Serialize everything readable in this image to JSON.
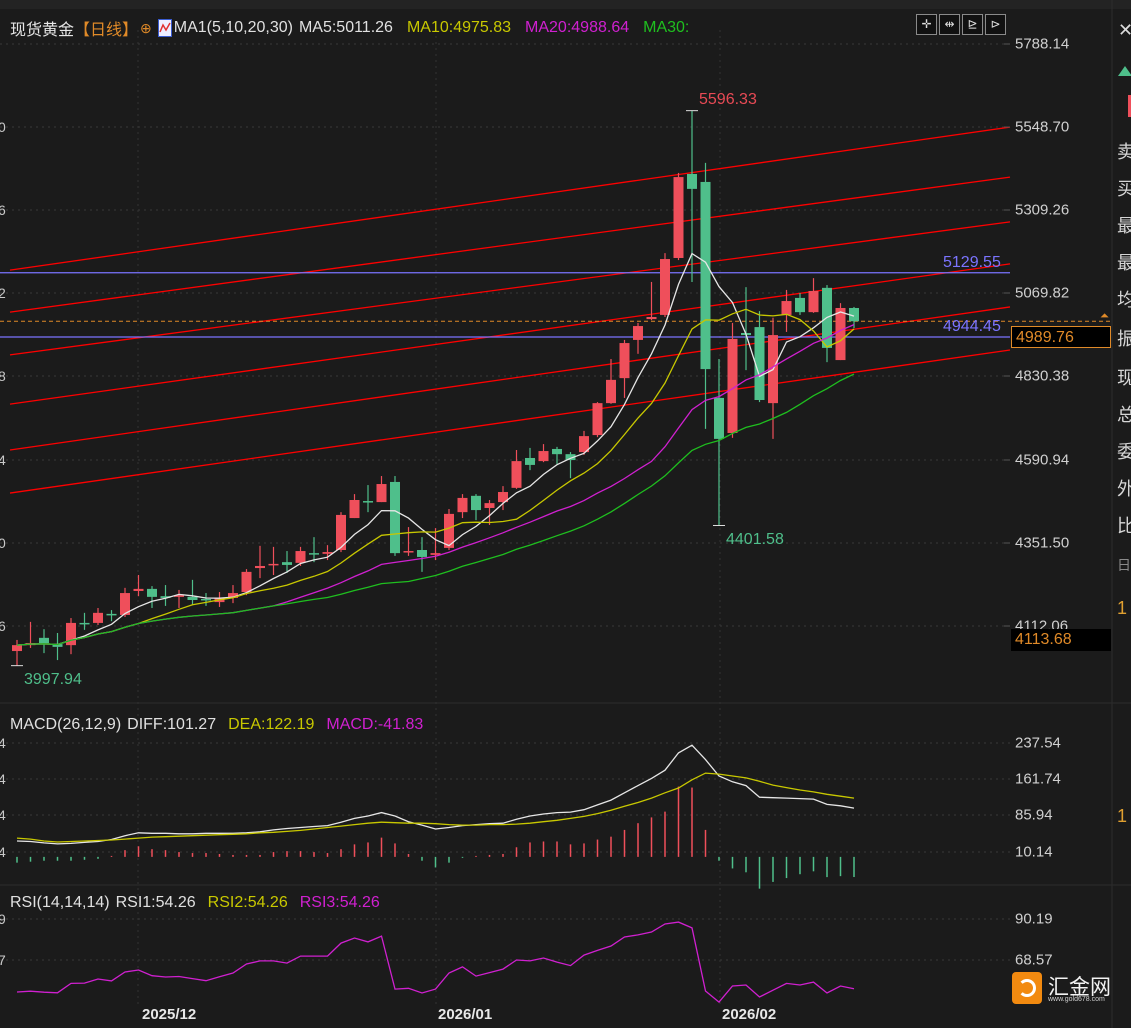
{
  "header": {
    "instrument": "现货黄金",
    "period": "【日线】",
    "ma_params": "MA1(5,10,20,30)",
    "ma5": "MA5:5011.26",
    "ma10": "MA10:4975.83",
    "ma20": "MA20:4988.64",
    "ma30": "MA30:",
    "toolbar_icons": [
      "crosshair-icon",
      "zoom-fit-icon",
      "step-back-icon",
      "step-forward-icon"
    ]
  },
  "price_axis": [
    "5788.14",
    "5548.70",
    "5309.26",
    "5069.82",
    "4830.38",
    "4590.94",
    "4351.50",
    "4112.06"
  ],
  "current_price_box": "4989.76",
  "lower_price_box": "4113.68",
  "annotations": {
    "high": "5596.33",
    "low_recent": "4401.58",
    "low_start": "3997.94",
    "hline_upper": "5129.55",
    "hline_lower": "4944.45"
  },
  "macd": {
    "legend_params": "MACD(26,12,9)",
    "diff_label": "DIFF:101.27",
    "dea_label": "DEA:122.19",
    "macd_label": "MACD:-41.83",
    "axis": [
      "237.54",
      "161.74",
      "85.94",
      "10.14"
    ]
  },
  "rsi": {
    "legend_params": "RSI(14,14,14)",
    "rsi1_label": "RSI1:54.26",
    "rsi2_label": "RSI2:54.26",
    "rsi3_label": "RSI3:54.26",
    "axis": [
      "90.19",
      "68.57"
    ]
  },
  "dates": [
    "2025/12",
    "2026/01",
    "2026/02"
  ],
  "left_edge_fragments": [
    "0",
    "6",
    "2",
    "8",
    "4",
    "0",
    "6",
    "4",
    "4",
    "4",
    "4",
    "9",
    "7"
  ],
  "right_panel_fragments": [
    "卖",
    "买",
    "最",
    "最",
    "均",
    "振",
    "现",
    "总",
    "委",
    "外",
    "比",
    "日",
    "1",
    "1"
  ],
  "watermark": {
    "name": "汇金网",
    "url": "www.gold678.com"
  },
  "colors": {
    "background": "#1b1b1b",
    "up": "#ef4f5b",
    "down": "#4fbf8b",
    "ma5": "#e6e6e6",
    "ma10": "#c8c800",
    "ma20": "#d020d0",
    "ma30": "#1fbf1f",
    "channel": "#ff0000",
    "hline": "#7b74ff",
    "current": "#e08a28"
  },
  "chart_data": {
    "type": "candlestick",
    "ylim": [
      3990,
      5800
    ],
    "grid": true,
    "ohlc": [
      [
        4040,
        4072,
        3997.94,
        4057
      ],
      [
        4057,
        4124,
        4049,
        4063
      ],
      [
        4078,
        4103,
        4034,
        4063
      ],
      [
        4060,
        4092,
        4014,
        4052
      ],
      [
        4057,
        4135,
        4031,
        4121
      ],
      [
        4121,
        4150,
        4101,
        4118
      ],
      [
        4121,
        4164,
        4115,
        4150
      ],
      [
        4147,
        4158,
        4126,
        4144
      ],
      [
        4144,
        4222,
        4138,
        4207
      ],
      [
        4213,
        4259,
        4198,
        4219
      ],
      [
        4219,
        4227,
        4164,
        4196
      ],
      [
        4198,
        4230,
        4170,
        4193
      ],
      [
        4196,
        4216,
        4164,
        4201
      ],
      [
        4196,
        4245,
        4173,
        4187
      ],
      [
        4190,
        4207,
        4170,
        4187
      ],
      [
        4181,
        4210,
        4167,
        4193
      ],
      [
        4193,
        4230,
        4178,
        4207
      ],
      [
        4210,
        4276,
        4201,
        4268
      ],
      [
        4279,
        4343,
        4250,
        4285
      ],
      [
        4288,
        4340,
        4259,
        4291
      ],
      [
        4296,
        4328,
        4265,
        4288
      ],
      [
        4294,
        4340,
        4285,
        4328
      ],
      [
        4322,
        4368,
        4296,
        4320
      ],
      [
        4320,
        4345,
        4302,
        4325
      ],
      [
        4331,
        4440,
        4325,
        4432
      ],
      [
        4423,
        4492,
        4423,
        4475
      ],
      [
        4472,
        4518,
        4440,
        4469
      ],
      [
        4469,
        4544,
        4469,
        4521
      ],
      [
        4527,
        4544,
        4314,
        4322
      ],
      [
        4325,
        4397,
        4314,
        4328
      ],
      [
        4331,
        4368,
        4268,
        4311
      ],
      [
        4317,
        4394,
        4302,
        4322
      ],
      [
        4337,
        4449,
        4331,
        4435
      ],
      [
        4440,
        4492,
        4423,
        4481
      ],
      [
        4487,
        4492,
        4417,
        4446
      ],
      [
        4452,
        4475,
        4403,
        4466
      ],
      [
        4469,
        4515,
        4446,
        4498
      ],
      [
        4510,
        4619,
        4507,
        4587
      ],
      [
        4596,
        4625,
        4561,
        4576
      ],
      [
        4587,
        4636,
        4584,
        4616
      ],
      [
        4622,
        4628,
        4579,
        4607
      ],
      [
        4607,
        4613,
        4538,
        4590
      ],
      [
        4613,
        4674,
        4605,
        4659
      ],
      [
        4662,
        4757,
        4656,
        4754
      ],
      [
        4754,
        4881,
        4752,
        4821
      ],
      [
        4826,
        4936,
        4769,
        4927
      ],
      [
        4936,
        4985,
        4896,
        4976
      ],
      [
        4996,
        5103,
        4993,
        5002
      ],
      [
        5008,
        5186,
        5002,
        5169
      ],
      [
        5172,
        5417,
        5166,
        5405
      ],
      [
        5414,
        5596.33,
        5103,
        5371
      ],
      [
        5391,
        5446,
        4680,
        4852
      ],
      [
        4769,
        4881,
        4401.58,
        4651
      ],
      [
        4668,
        4985,
        4654,
        4939
      ],
      [
        4956,
        5088,
        4849,
        4950
      ],
      [
        4973,
        5019,
        4757,
        4763
      ],
      [
        4754,
        5000,
        4651,
        4950
      ],
      [
        5008,
        5080,
        4959,
        5048
      ],
      [
        5057,
        5071,
        5008,
        5016
      ],
      [
        5016,
        5114,
        5014,
        5077
      ],
      [
        5086,
        5094,
        4872,
        4913
      ],
      [
        4878,
        5042,
        4878,
        5028
      ],
      [
        5028,
        5031,
        4970,
        4989.76
      ]
    ],
    "moving_averages": [
      5,
      10,
      20,
      30
    ],
    "horizontal_lines": [
      5129.55,
      4944.45
    ],
    "current_price": 4989.76,
    "channel_lines": [
      {
        "start": 5137,
        "end": 5549
      },
      {
        "start": 5016,
        "end": 5405
      },
      {
        "start": 4893,
        "end": 5276
      },
      {
        "start": 4751,
        "end": 5155
      },
      {
        "start": 4619,
        "end": 5031
      },
      {
        "start": 4495,
        "end": 4907
      }
    ],
    "macd": {
      "diff": [
        33,
        32,
        29,
        27,
        28,
        30,
        32,
        36,
        44,
        50,
        49,
        49,
        48,
        48,
        49,
        49,
        49,
        50,
        52,
        56,
        59,
        61,
        63,
        65,
        72,
        80,
        85,
        92,
        85,
        73,
        66,
        58,
        61,
        65,
        67,
        69,
        70,
        78,
        85,
        89,
        92,
        93,
        98,
        108,
        118,
        133,
        148,
        163,
        180,
        216,
        232,
        202,
        168,
        156,
        148,
        124,
        123,
        122,
        121,
        120,
        109,
        106,
        101.27
      ],
      "dea": [
        39,
        37,
        33,
        31,
        32,
        33,
        34,
        35,
        37,
        39,
        41,
        42,
        43,
        44,
        45,
        46,
        47,
        48,
        50,
        51,
        53,
        55,
        58,
        61,
        64,
        67,
        70,
        72,
        71,
        70,
        70,
        69,
        67,
        66,
        66,
        67,
        67,
        68,
        70,
        73,
        76,
        80,
        84,
        90,
        97,
        105,
        113,
        122,
        133,
        143,
        160,
        174,
        172,
        168,
        164,
        157,
        149,
        144,
        139,
        135,
        130,
        126,
        122.19
      ],
      "ylim": [
        -20,
        250
      ]
    },
    "rsi": {
      "values": [
        52.6,
        53,
        52.5,
        52.2,
        57,
        57.2,
        59.3,
        58.3,
        62.9,
        63.9,
        61,
        60.3,
        60.6,
        59.5,
        58.4,
        60.5,
        62.4,
        67,
        68.6,
        68.6,
        67.5,
        71.1,
        71.1,
        71.1,
        77.8,
        80.4,
        78.4,
        81.4,
        54.1,
        54.5,
        52.1,
        54.1,
        62.4,
        65.5,
        60.8,
        62.6,
        64.4,
        69.1,
        68.6,
        70.1,
        68,
        66.2,
        71.6,
        74,
        76.3,
        80.9,
        82,
        83.5,
        87.6,
        88.6,
        85.6,
        53.1,
        47.4,
        55.7,
        56.2,
        50,
        53.5,
        57,
        56.2,
        57.7,
        52.1,
        55.7,
        54.26
      ],
      "ylim": [
        45,
        95
      ]
    }
  }
}
